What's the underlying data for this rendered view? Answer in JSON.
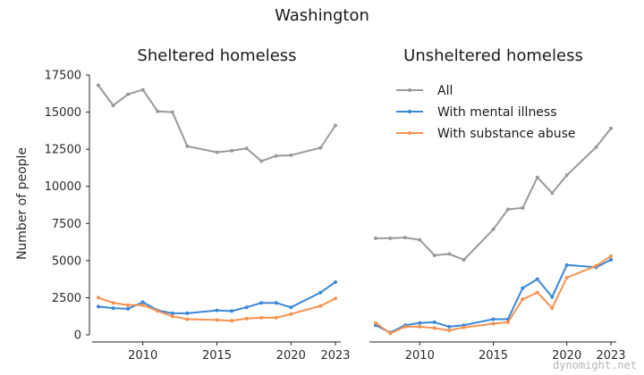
{
  "title": "Washington",
  "watermark": "dynomight.net",
  "ylabel": "Number of people",
  "colors": {
    "all": "#999999",
    "mental": "#3a87d4",
    "substance": "#f5924f"
  },
  "legend": [
    {
      "key": "all",
      "label": "All"
    },
    {
      "key": "mental",
      "label": "With mental illness"
    },
    {
      "key": "substance",
      "label": "With substance abuse"
    }
  ],
  "chart_data": [
    {
      "type": "line",
      "title": "Sheltered homeless",
      "xlabel": "",
      "ylabel": "Number of people",
      "xlim": [
        2007,
        2023
      ],
      "ylim": [
        0,
        17500
      ],
      "xticks": [
        2010,
        2015,
        2020,
        2023
      ],
      "yticks": [
        0,
        2500,
        5000,
        7500,
        10000,
        12500,
        15000,
        17500
      ],
      "series": [
        {
          "name": "All",
          "key": "all",
          "x": [
            2007,
            2008,
            2009,
            2010,
            2011,
            2012,
            2013,
            2015,
            2016,
            2017,
            2018,
            2019,
            2020,
            2022,
            2023
          ],
          "y": [
            16800,
            15450,
            16200,
            16500,
            15050,
            15000,
            12700,
            12300,
            12400,
            12550,
            11700,
            12050,
            12100,
            12600,
            14100
          ]
        },
        {
          "name": "With mental illness",
          "key": "mental",
          "x": [
            2007,
            2008,
            2009,
            2010,
            2011,
            2012,
            2013,
            2015,
            2016,
            2017,
            2018,
            2019,
            2020,
            2022,
            2023
          ],
          "y": [
            1900,
            1800,
            1750,
            2200,
            1650,
            1450,
            1450,
            1650,
            1600,
            1850,
            2150,
            2150,
            1850,
            2850,
            3550
          ]
        },
        {
          "name": "With substance abuse",
          "key": "substance",
          "x": [
            2007,
            2008,
            2009,
            2010,
            2011,
            2012,
            2013,
            2015,
            2016,
            2017,
            2018,
            2019,
            2020,
            2022,
            2023
          ],
          "y": [
            2500,
            2150,
            2000,
            2000,
            1600,
            1250,
            1050,
            1000,
            950,
            1100,
            1150,
            1150,
            1400,
            1950,
            2450
          ]
        }
      ]
    },
    {
      "type": "line",
      "title": "Unsheltered homeless",
      "xlabel": "",
      "ylabel": "",
      "xlim": [
        2007,
        2023
      ],
      "ylim": [
        0,
        17500
      ],
      "xticks": [
        2010,
        2015,
        2020,
        2023
      ],
      "legend": "top-right",
      "series": [
        {
          "name": "All",
          "key": "all",
          "x": [
            2007,
            2008,
            2009,
            2010,
            2011,
            2012,
            2013,
            2015,
            2016,
            2017,
            2018,
            2019,
            2020,
            2022,
            2023
          ],
          "y": [
            6500,
            6500,
            6550,
            6400,
            5350,
            5450,
            5050,
            7100,
            8450,
            8550,
            10600,
            9550,
            10750,
            12650,
            13900
          ]
        },
        {
          "name": "With mental illness",
          "key": "mental",
          "x": [
            2007,
            2008,
            2009,
            2010,
            2011,
            2012,
            2013,
            2015,
            2016,
            2017,
            2018,
            2019,
            2020,
            2022,
            2023
          ],
          "y": [
            650,
            150,
            650,
            800,
            850,
            550,
            650,
            1050,
            1050,
            3150,
            3750,
            2550,
            4700,
            4550,
            5050
          ]
        },
        {
          "name": "With substance abuse",
          "key": "substance",
          "x": [
            2007,
            2008,
            2009,
            2010,
            2011,
            2012,
            2013,
            2015,
            2016,
            2017,
            2018,
            2019,
            2020,
            2022,
            2023
          ],
          "y": [
            800,
            100,
            550,
            550,
            450,
            300,
            500,
            750,
            850,
            2400,
            2850,
            1800,
            3850,
            4650,
            5300
          ]
        }
      ]
    }
  ]
}
